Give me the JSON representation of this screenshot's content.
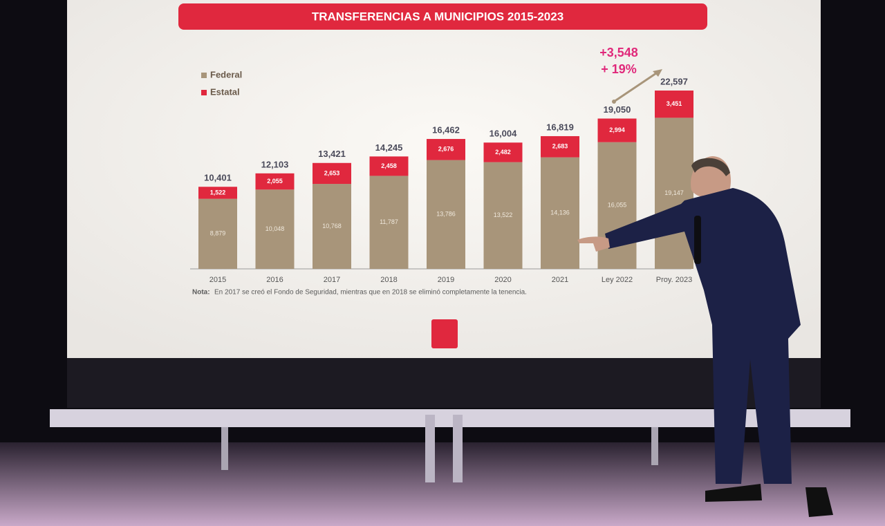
{
  "chart_data": {
    "type": "stacked-bar",
    "title": "TRANSFERENCIAS A MUNICIPIOS 2015-2023",
    "categories": [
      "2015",
      "2016",
      "2017",
      "2018",
      "2019",
      "2020",
      "2021",
      "Ley 2022",
      "Proy. 2023"
    ],
    "series": [
      {
        "name": "Federal",
        "color": "#a8957a",
        "values": [
          8879,
          10048,
          10768,
          11787,
          13786,
          13522,
          14136,
          16055,
          19147
        ],
        "value_labels": [
          "8,879",
          "10,048",
          "10,768",
          "11,787",
          "13,786",
          "13,522",
          "14,136",
          "16,055",
          "19,147"
        ]
      },
      {
        "name": "Estatal",
        "color": "#e0283e",
        "values": [
          1522,
          2055,
          2653,
          2458,
          2676,
          2482,
          2683,
          2994,
          3451
        ],
        "value_labels": [
          "1,522",
          "2,055",
          "2,653",
          "2,458",
          "2,676",
          "2,482",
          "2,683",
          "2,994",
          "3,451"
        ]
      }
    ],
    "totals": [
      10401,
      12103,
      13421,
      14245,
      16462,
      16004,
      16819,
      19050,
      22597
    ],
    "total_labels": [
      "10,401",
      "12,103",
      "13,421",
      "14,245",
      "16,462",
      "16,004",
      "16,819",
      "19,050",
      "22,597"
    ],
    "annotation": {
      "change": "+3,548",
      "percent": "+ 19%"
    },
    "note": {
      "label": "Nota:",
      "text": "En 2017 se creó el Fondo de Seguridad, mientras que en 2018 se eliminó completamente la tenencia."
    }
  }
}
